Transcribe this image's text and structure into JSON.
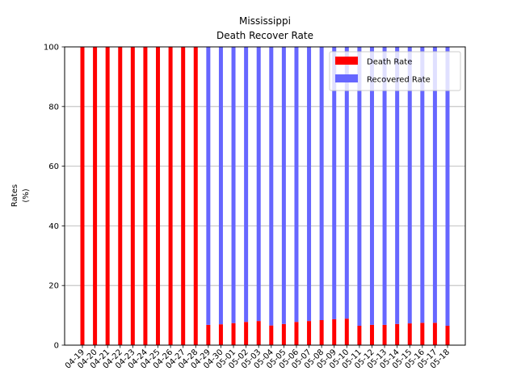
{
  "chart_data": {
    "type": "bar",
    "stacked": true,
    "title": [
      "Mississippi",
      "Death Recover Rate"
    ],
    "xlabel": "",
    "ylabel": [
      "Rates",
      "(%)"
    ],
    "ylim": [
      0,
      100
    ],
    "yticks": [
      0,
      20,
      40,
      60,
      80,
      100
    ],
    "grid": "y",
    "legend_position": "top-right",
    "categories": [
      "04-19",
      "04-20",
      "04-21",
      "04-22",
      "04-23",
      "04-24",
      "04-25",
      "04-26",
      "04-27",
      "04-28",
      "04-29",
      "04-30",
      "05-01",
      "05-02",
      "05-03",
      "05-04",
      "05-05",
      "05-06",
      "05-07",
      "05-08",
      "05-09",
      "05-10",
      "05-11",
      "05-12",
      "05-13",
      "05-14",
      "05-15",
      "05-16",
      "05-17",
      "05-18"
    ],
    "series": [
      {
        "name": "Death Rate",
        "color": "#ff0000",
        "values": [
          100,
          100,
          100,
          100,
          100,
          100,
          100,
          100,
          100,
          100,
          6.8,
          7.0,
          7.4,
          7.8,
          8.1,
          6.6,
          7.1,
          7.8,
          8.1,
          8.4,
          8.7,
          8.9,
          6.5,
          6.8,
          6.8,
          7.1,
          7.3,
          7.5,
          7.5,
          6.5
        ]
      },
      {
        "name": "Recovered Rate",
        "color": "#6666ff",
        "values": [
          0,
          0,
          0,
          0,
          0,
          0,
          0,
          0,
          0,
          0,
          93.2,
          93.0,
          92.6,
          92.2,
          91.9,
          93.4,
          92.9,
          92.2,
          91.9,
          91.6,
          91.3,
          91.1,
          93.5,
          93.2,
          93.2,
          92.9,
          92.7,
          92.5,
          92.5,
          93.5
        ]
      }
    ]
  }
}
